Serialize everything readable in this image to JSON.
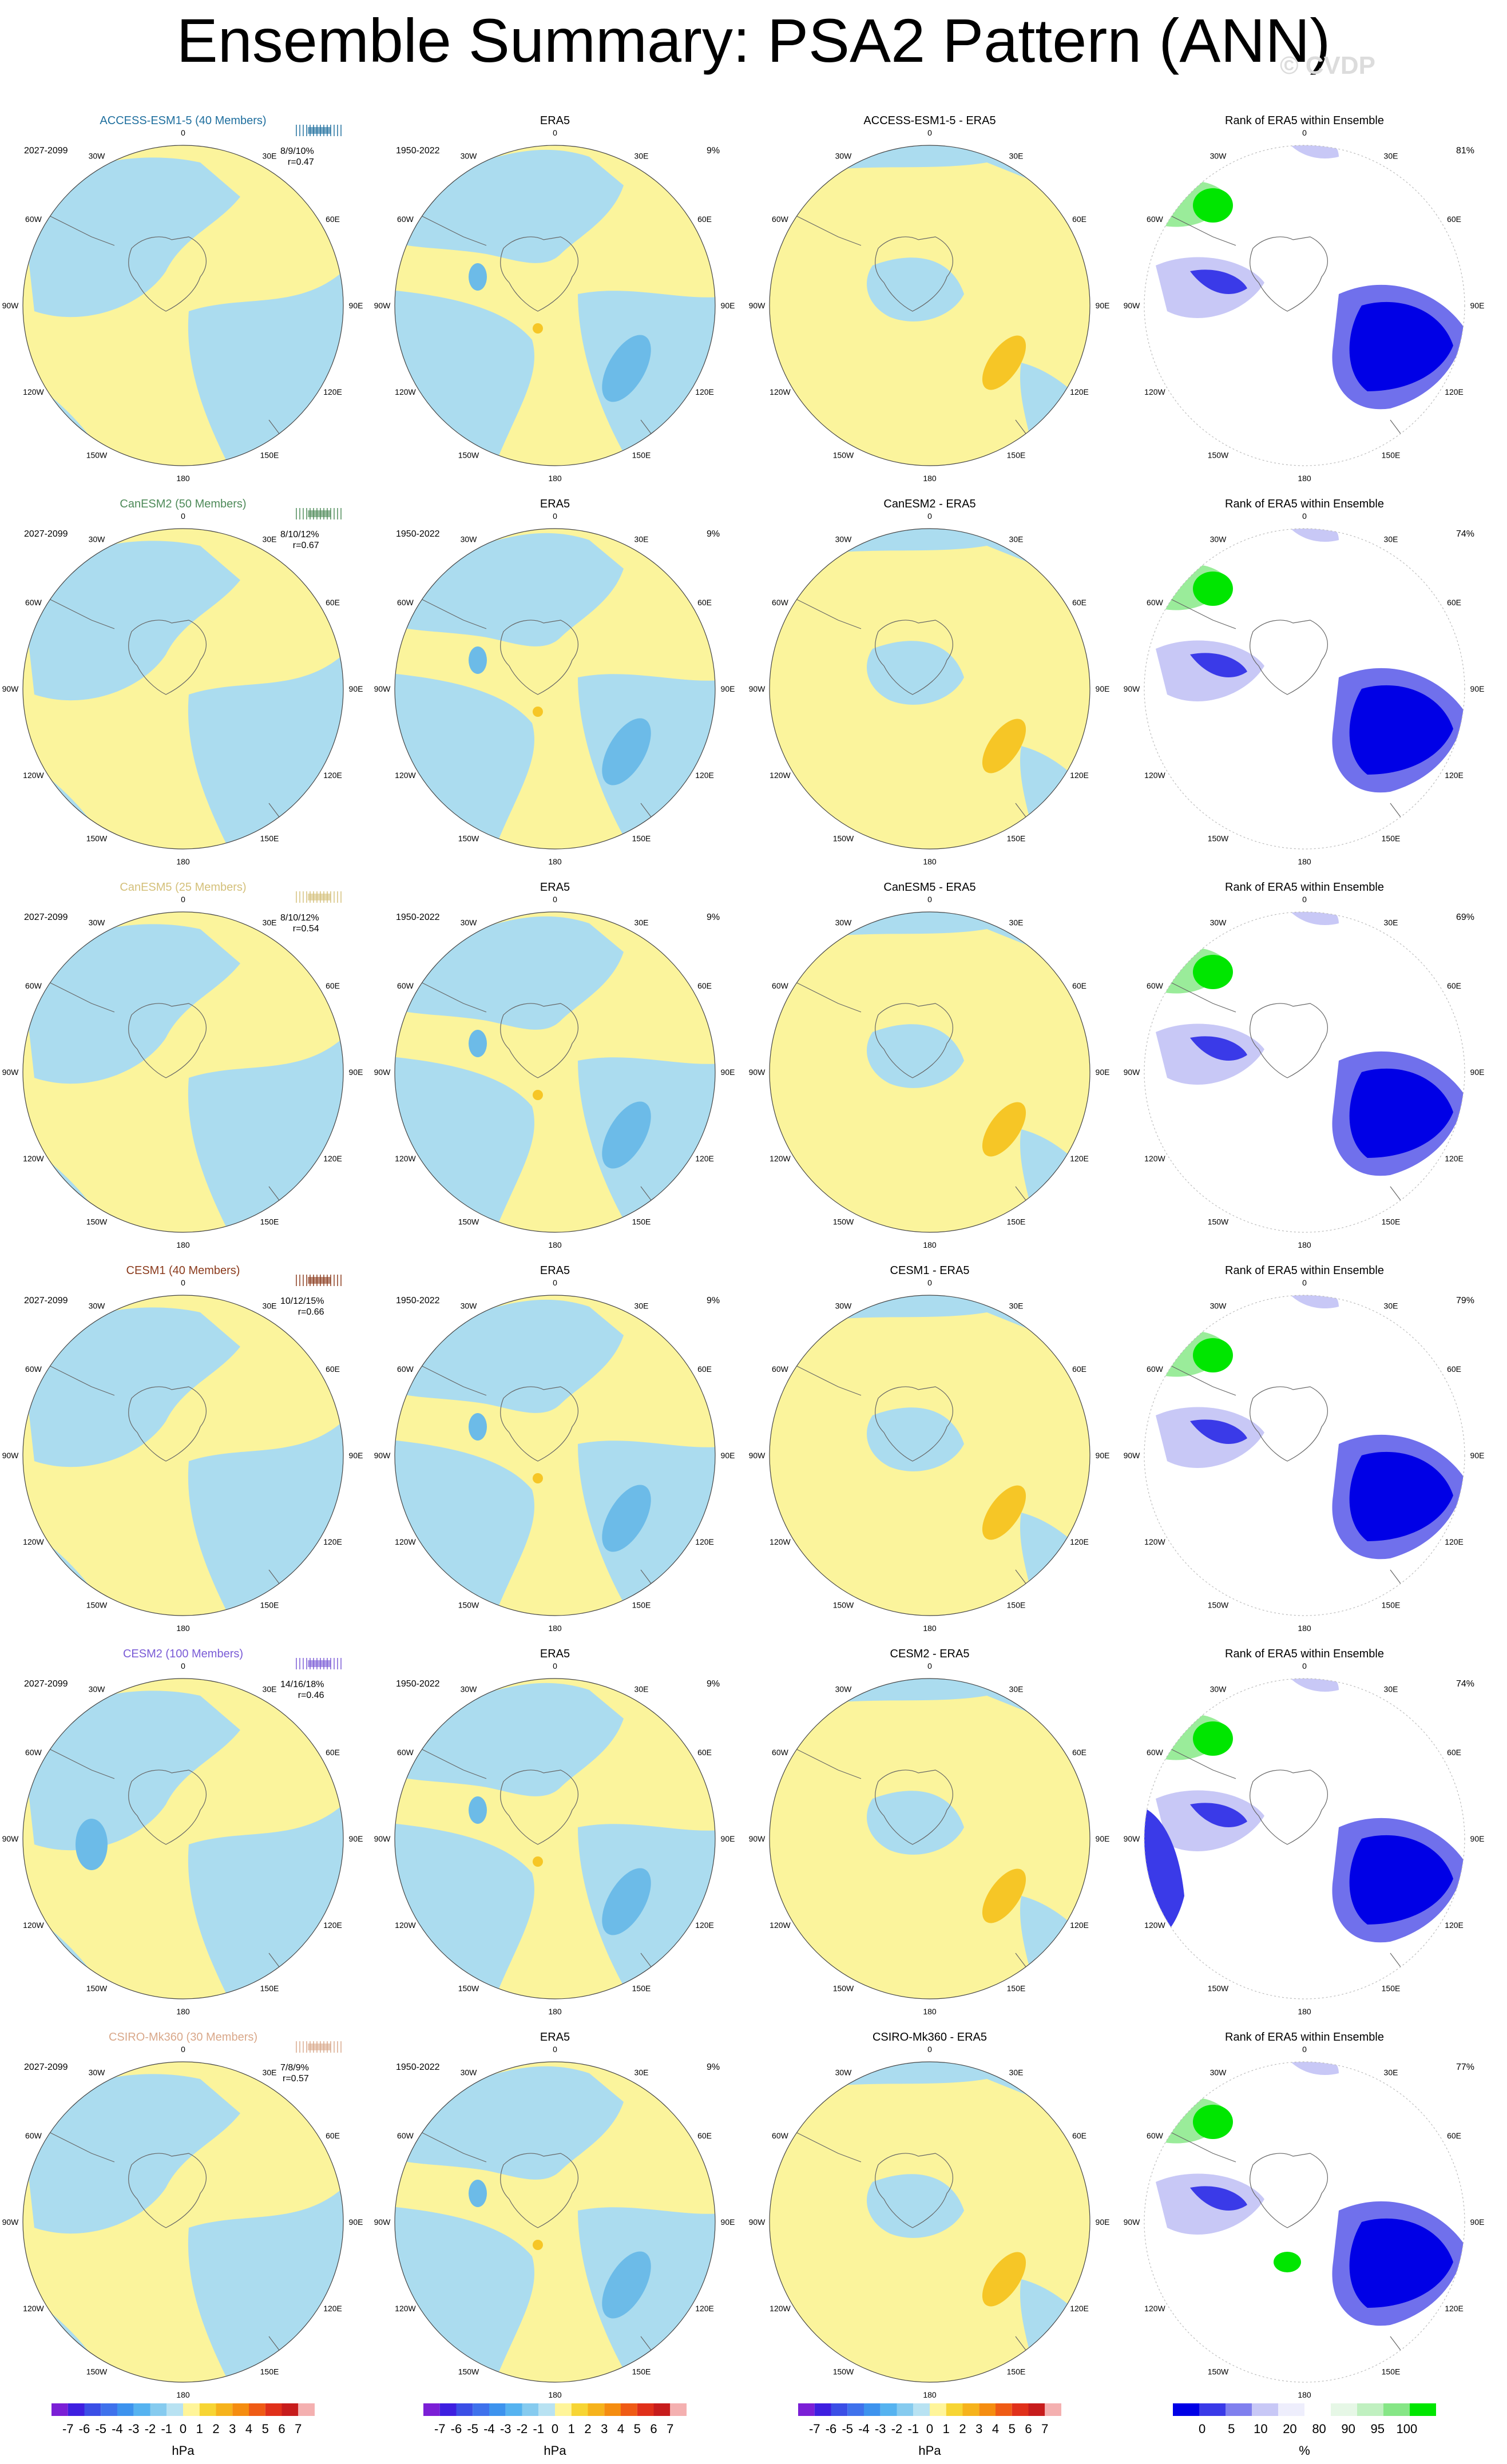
{
  "page_title": "Ensemble Summary: PSA2 Pattern (ANN)",
  "watermark": "© CVDP",
  "rank_title": "Rank of ERA5 within Ensemble",
  "obs_title": "ERA5",
  "obs_period": "1950-2022",
  "model_period": "2027-2099",
  "lon_labels": {
    "n": "0",
    "s": "180",
    "w": "90W",
    "e": "90E",
    "nw1": "30W",
    "nw2": "60W",
    "ne1": "30E",
    "ne2": "60E",
    "sw1": "120W",
    "sw2": "150W",
    "se1": "120E",
    "se2": "150E"
  },
  "rows": [
    {
      "model": "ACCESS-ESM1-5 (40 Members)",
      "diff_title": "ACCESS-ESM1-5 - ERA5",
      "stats": "8/9/10%",
      "r": "r=0.47",
      "rank_pct": "81%",
      "obs_pct": "9%",
      "color": "#1f6f9e"
    },
    {
      "model": "CanESM2 (50 Members)",
      "diff_title": "CanESM2 - ERA5",
      "stats": "8/10/12%",
      "r": "r=0.67",
      "rank_pct": "74%",
      "obs_pct": "9%",
      "color": "#4e8a59"
    },
    {
      "model": "CanESM5 (25 Members)",
      "diff_title": "CanESM5 - ERA5",
      "stats": "8/10/12%",
      "r": "r=0.54",
      "rank_pct": "69%",
      "obs_pct": "9%",
      "color": "#d4c07a"
    },
    {
      "model": "CESM1 (40 Members)",
      "diff_title": "CESM1 - ERA5",
      "stats": "10/12/15%",
      "r": "r=0.66",
      "rank_pct": "79%",
      "obs_pct": "9%",
      "color": "#8a3a1c"
    },
    {
      "model": "CESM2 (100 Members)",
      "diff_title": "CESM2 - ERA5",
      "stats": "14/16/18%",
      "r": "r=0.46",
      "rank_pct": "74%",
      "obs_pct": "9%",
      "color": "#7a5bd6"
    },
    {
      "model": "CSIRO-Mk360 (30 Members)",
      "diff_title": "CSIRO-Mk360 - ERA5",
      "stats": "7/8/9%",
      "r": "r=0.57",
      "rank_pct": "77%",
      "obs_pct": "9%",
      "color": "#d9a88a"
    }
  ],
  "colorbar_hpa": {
    "units": "hPa",
    "labels": [
      "-7",
      "-6",
      "-5",
      "-4",
      "-3",
      "-2",
      "-1",
      "0",
      "1",
      "2",
      "3",
      "4",
      "5",
      "6",
      "7"
    ],
    "colors": [
      "#7b1fd6",
      "#3e1fe0",
      "#3b4fe6",
      "#3f72ec",
      "#3d93ee",
      "#56b3f0",
      "#86cbef",
      "#b8e2f2",
      "#fff59a",
      "#f7d534",
      "#f6b31c",
      "#f58d10",
      "#ef5b15",
      "#e0301a",
      "#c71c1c",
      "#f4b0b0"
    ]
  },
  "colorbar_rank": {
    "units": "%",
    "labels": [
      "0",
      "5",
      "10",
      "20",
      "80",
      "90",
      "95",
      "100"
    ],
    "colors": [
      "#0000e6",
      "#3a3ae8",
      "#8080ee",
      "#c8c8f6",
      "#eeeefc",
      "#ffffff",
      "#e6f7e6",
      "#c0f0c0",
      "#86e686",
      "#00e600"
    ]
  }
}
